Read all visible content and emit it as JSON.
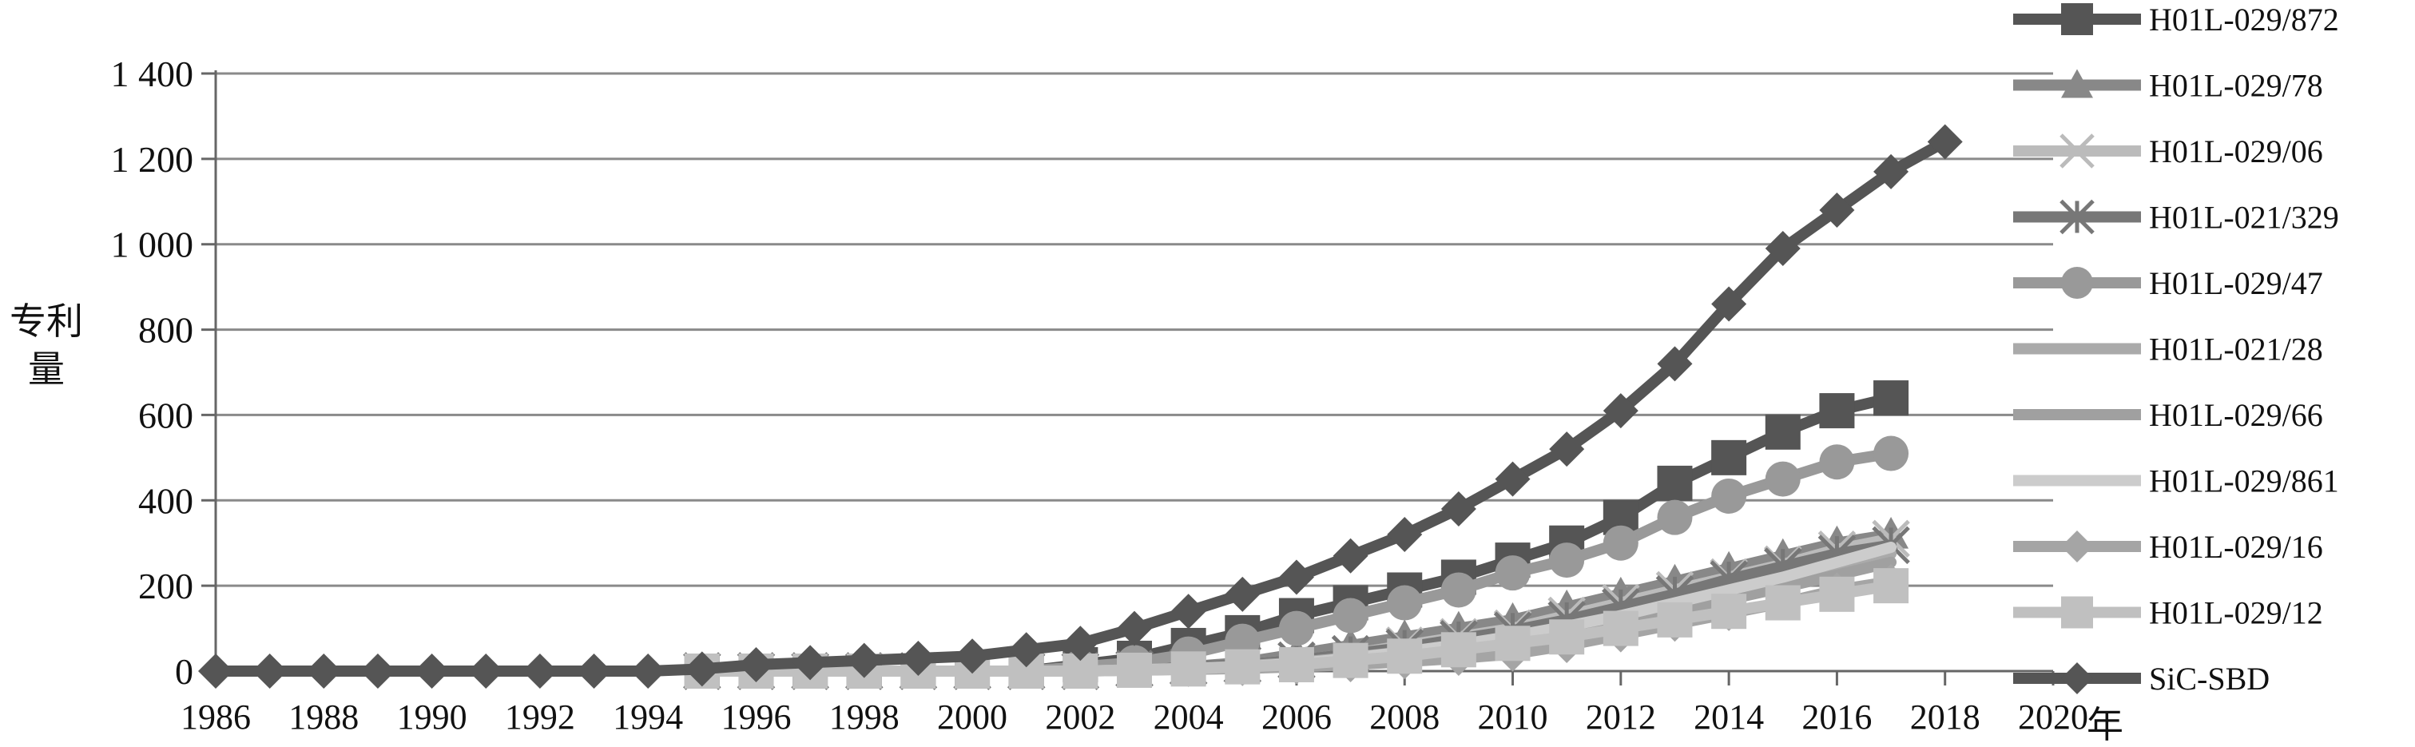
{
  "chart_data": {
    "type": "line",
    "title": "",
    "xlabel": "年",
    "ylabel": "专利量",
    "ylabel_lines": [
      "专利",
      "量"
    ],
    "ylim": [
      0,
      1400
    ],
    "xlim": [
      1986,
      2020
    ],
    "grid": true,
    "legend_position": "right",
    "y_ticks": [
      {
        "value": 0,
        "label": "0"
      },
      {
        "value": 200,
        "label": "200"
      },
      {
        "value": 400,
        "label": "400"
      },
      {
        "value": 600,
        "label": "600"
      },
      {
        "value": 800,
        "label": "800"
      },
      {
        "value": 1000,
        "label": "1 000"
      },
      {
        "value": 1200,
        "label": "1 200"
      },
      {
        "value": 1400,
        "label": "1 400"
      }
    ],
    "x_ticks": [
      {
        "value": 1986,
        "label": "1986"
      },
      {
        "value": 1988,
        "label": "1988"
      },
      {
        "value": 1990,
        "label": "1990"
      },
      {
        "value": 1992,
        "label": "1992"
      },
      {
        "value": 1994,
        "label": "1994"
      },
      {
        "value": 1996,
        "label": "1996"
      },
      {
        "value": 1998,
        "label": "1998"
      },
      {
        "value": 2000,
        "label": "2000"
      },
      {
        "value": 2002,
        "label": "2002"
      },
      {
        "value": 2004,
        "label": "2004"
      },
      {
        "value": 2006,
        "label": "2006"
      },
      {
        "value": 2008,
        "label": "2008"
      },
      {
        "value": 2010,
        "label": "2010"
      },
      {
        "value": 2012,
        "label": "2012"
      },
      {
        "value": 2014,
        "label": "2014"
      },
      {
        "value": 2016,
        "label": "2016"
      },
      {
        "value": 2018,
        "label": "2018"
      },
      {
        "value": 2020,
        "label": "2020"
      }
    ],
    "series": [
      {
        "name": "H01L-029/872",
        "color": "#555555",
        "marker": "square",
        "start": 1995,
        "values": [
          0,
          0,
          0,
          0,
          0,
          0,
          0,
          15,
          30,
          60,
          90,
          130,
          160,
          190,
          220,
          260,
          300,
          360,
          440,
          500,
          560,
          610,
          640
        ]
      },
      {
        "name": "H01L-029/78",
        "color": "#888888",
        "marker": "triangle",
        "start": 1995,
        "values": [
          0,
          0,
          0,
          0,
          0,
          0,
          0,
          0,
          5,
          10,
          20,
          40,
          60,
          80,
          100,
          120,
          150,
          180,
          210,
          240,
          270,
          300,
          320
        ]
      },
      {
        "name": "H01L-029/06",
        "color": "#bbbbbb",
        "marker": "x",
        "start": 1995,
        "values": [
          0,
          0,
          0,
          0,
          0,
          0,
          0,
          0,
          5,
          10,
          15,
          25,
          40,
          60,
          80,
          100,
          130,
          160,
          190,
          220,
          250,
          285,
          310
        ]
      },
      {
        "name": "H01L-021/329",
        "color": "#777777",
        "marker": "asterisk",
        "start": 1995,
        "values": [
          0,
          0,
          0,
          0,
          0,
          0,
          0,
          0,
          5,
          10,
          15,
          25,
          40,
          55,
          75,
          95,
          120,
          150,
          180,
          215,
          245,
          275,
          295
        ]
      },
      {
        "name": "H01L-029/47",
        "color": "#999999",
        "marker": "circle",
        "start": 1995,
        "values": [
          0,
          0,
          0,
          0,
          0,
          0,
          0,
          10,
          20,
          40,
          70,
          100,
          130,
          160,
          190,
          230,
          260,
          300,
          360,
          410,
          450,
          490,
          510
        ]
      },
      {
        "name": "H01L-021/28",
        "color": "#aaaaaa",
        "marker": "none",
        "start": 1995,
        "values": [
          0,
          0,
          0,
          0,
          0,
          0,
          0,
          0,
          3,
          6,
          12,
          20,
          32,
          45,
          60,
          78,
          100,
          125,
          155,
          185,
          215,
          245,
          275
        ]
      },
      {
        "name": "H01L-029/66",
        "color": "#a0a0a0",
        "marker": "none",
        "start": 1995,
        "values": [
          0,
          0,
          0,
          0,
          0,
          0,
          0,
          0,
          3,
          6,
          10,
          18,
          28,
          40,
          55,
          72,
          92,
          115,
          140,
          168,
          196,
          225,
          255
        ]
      },
      {
        "name": "H01L-029/861",
        "color": "#cccccc",
        "marker": "none",
        "start": 1995,
        "values": [
          0,
          0,
          0,
          0,
          0,
          0,
          0,
          0,
          3,
          6,
          10,
          18,
          30,
          45,
          62,
          82,
          105,
          130,
          160,
          190,
          220,
          255,
          290
        ]
      },
      {
        "name": "H01L-029/16",
        "color": "#a5a5a5",
        "marker": "diamond",
        "start": 1995,
        "values": [
          0,
          0,
          0,
          0,
          0,
          0,
          0,
          0,
          2,
          4,
          6,
          10,
          15,
          22,
          30,
          40,
          60,
          85,
          110,
          135,
          160,
          190,
          210
        ]
      },
      {
        "name": "H01L-029/12",
        "color": "#c0c0c0",
        "marker": "square",
        "start": 1995,
        "values": [
          0,
          0,
          0,
          0,
          0,
          0,
          0,
          0,
          2,
          5,
          10,
          15,
          25,
          35,
          50,
          65,
          80,
          100,
          120,
          140,
          160,
          180,
          200
        ]
      },
      {
        "name": "SiC-SBD",
        "color": "#555555",
        "marker": "diamond",
        "start": 1986,
        "values": [
          0,
          0,
          0,
          0,
          0,
          0,
          0,
          0,
          0,
          5,
          15,
          20,
          25,
          30,
          35,
          50,
          65,
          100,
          140,
          180,
          220,
          270,
          320,
          380,
          450,
          520,
          610,
          720,
          860,
          990,
          1080,
          1170,
          1240
        ]
      }
    ]
  }
}
